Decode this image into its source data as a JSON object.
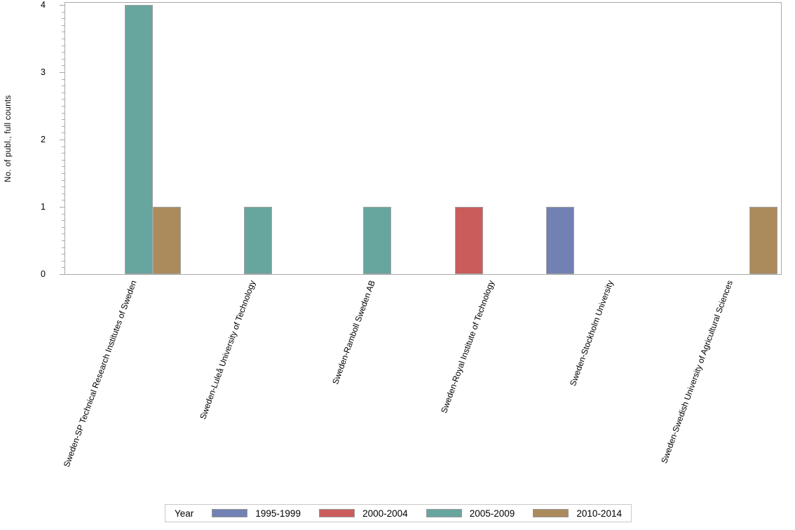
{
  "chart_data": {
    "type": "bar",
    "title": "",
    "xlabel": "",
    "ylabel": "No. of publ., full counts",
    "ylim": [
      0,
      4
    ],
    "y_major_ticks": [
      0,
      1,
      2,
      3,
      4
    ],
    "y_minor_tick_interval": 0.1,
    "grid": "off",
    "legend_position": "bottom",
    "categories": [
      "Sweden-SP Technical Research Institutes of Sweden",
      "Sweden-Luleå University of Technology",
      "Sweden-Ramboll Sweden AB",
      "Sweden-Royal Institute of Technology",
      "Sweden-Stockholm University",
      "Sweden-Swedish University of Agricultural Sciences"
    ],
    "series": [
      {
        "name": "1995-1999",
        "color": "#7181B4",
        "values": [
          0,
          0,
          0,
          0,
          1,
          0
        ]
      },
      {
        "name": "2000-2004",
        "color": "#CB5C5C",
        "values": [
          0,
          0,
          0,
          1,
          0,
          0
        ]
      },
      {
        "name": "2005-2009",
        "color": "#67A59F",
        "values": [
          4,
          1,
          1,
          0,
          0,
          0
        ]
      },
      {
        "name": "2010-2014",
        "color": "#AB8A5C",
        "values": [
          1,
          0,
          0,
          0,
          0,
          1
        ]
      }
    ]
  },
  "legend": {
    "title": "Year"
  },
  "colors": {
    "axis_line": "#A9A9A9",
    "bar_border": "#A3A3A3",
    "legend_border": "#C8C8C8",
    "text": "#000000"
  }
}
